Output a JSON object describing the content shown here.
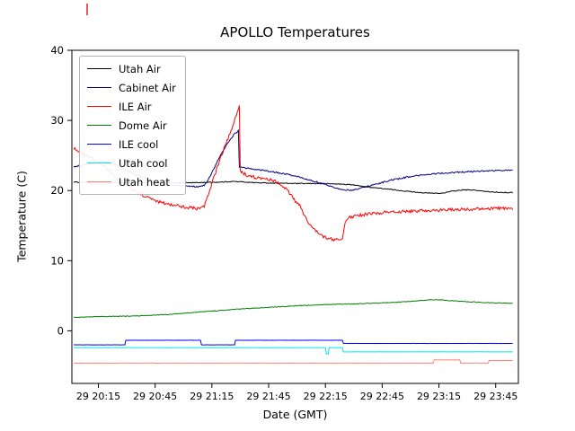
{
  "chart_data": {
    "type": "line",
    "title": "APOLLO Temperatures",
    "xlabel": "Date (GMT)",
    "ylabel": "Temperature (C)",
    "x_unit": "minutes after 29 20:00 GMT",
    "xlim": [
      1,
      237
    ],
    "ylim": [
      -7.5,
      40
    ],
    "grid": false,
    "legend_position": "upper left",
    "yticks": [
      0,
      10,
      20,
      30,
      40
    ],
    "xticks": [
      {
        "t": 15,
        "label": "29 20:15"
      },
      {
        "t": 45,
        "label": "29 20:45"
      },
      {
        "t": 75,
        "label": "29 21:15"
      },
      {
        "t": 105,
        "label": "29 21:45"
      },
      {
        "t": 135,
        "label": "29 22:15"
      },
      {
        "t": 165,
        "label": "29 22:45"
      },
      {
        "t": 195,
        "label": "29 23:15"
      },
      {
        "t": 225,
        "label": "29 23:45"
      }
    ],
    "series": [
      {
        "name": "Utah Air",
        "color": "#000000",
        "noise": 0.06,
        "points": [
          [
            2,
            21.2
          ],
          [
            30,
            21.15
          ],
          [
            60,
            21.1
          ],
          [
            80,
            21.2
          ],
          [
            86,
            21.3
          ],
          [
            90,
            21.25
          ],
          [
            100,
            21.1
          ],
          [
            110,
            21.05
          ],
          [
            120,
            21.0
          ],
          [
            130,
            21.0
          ],
          [
            140,
            20.95
          ],
          [
            148,
            20.85
          ],
          [
            158,
            20.5
          ],
          [
            168,
            20.2
          ],
          [
            178,
            19.9
          ],
          [
            188,
            19.65
          ],
          [
            196,
            19.6
          ],
          [
            202,
            19.9
          ],
          [
            208,
            20.1
          ],
          [
            214,
            20.05
          ],
          [
            220,
            19.85
          ],
          [
            227,
            19.75
          ],
          [
            234,
            19.7
          ]
        ]
      },
      {
        "name": "Cabinet Air",
        "color": "#000080",
        "noise": 0.1,
        "points": [
          [
            2,
            23.4
          ],
          [
            8,
            23.7
          ],
          [
            14,
            24.0
          ],
          [
            18,
            24.15
          ],
          [
            22,
            23.9
          ],
          [
            28,
            23.2
          ],
          [
            34,
            22.4
          ],
          [
            40,
            21.7
          ],
          [
            46,
            21.2
          ],
          [
            52,
            20.9
          ],
          [
            58,
            20.7
          ],
          [
            64,
            20.6
          ],
          [
            69,
            20.55
          ],
          [
            71,
            20.7
          ],
          [
            74,
            22.0
          ],
          [
            78,
            24.2
          ],
          [
            82,
            26.2
          ],
          [
            85,
            27.4
          ],
          [
            87,
            28.1
          ],
          [
            89,
            28.5
          ],
          [
            89.5,
            23.4
          ],
          [
            93,
            23.2
          ],
          [
            99,
            23.0
          ],
          [
            106,
            22.7
          ],
          [
            113,
            22.4
          ],
          [
            120,
            22.0
          ],
          [
            127,
            21.5
          ],
          [
            133,
            21.0
          ],
          [
            139,
            20.5
          ],
          [
            144,
            20.15
          ],
          [
            147,
            20.05
          ],
          [
            150,
            20.1
          ],
          [
            156,
            20.5
          ],
          [
            163,
            21.0
          ],
          [
            170,
            21.5
          ],
          [
            178,
            21.9
          ],
          [
            186,
            22.2
          ],
          [
            195,
            22.45
          ],
          [
            205,
            22.6
          ],
          [
            215,
            22.75
          ],
          [
            225,
            22.85
          ],
          [
            234,
            22.9
          ]
        ]
      },
      {
        "name": "ILE Air",
        "color": "#ff0000",
        "noise": 0.22,
        "points": [
          [
            2,
            26.0
          ],
          [
            7,
            25.3
          ],
          [
            12,
            24.5
          ],
          [
            17,
            23.6
          ],
          [
            22,
            22.5
          ],
          [
            27,
            21.3
          ],
          [
            32,
            20.3
          ],
          [
            37,
            19.5
          ],
          [
            42,
            18.9
          ],
          [
            47,
            18.4
          ],
          [
            52,
            18.1
          ],
          [
            57,
            17.85
          ],
          [
            62,
            17.6
          ],
          [
            66,
            17.45
          ],
          [
            69,
            17.4
          ],
          [
            71,
            17.8
          ],
          [
            73,
            19.3
          ],
          [
            76,
            21.8
          ],
          [
            79,
            24.2
          ],
          [
            82,
            26.4
          ],
          [
            85,
            28.4
          ],
          [
            87,
            29.9
          ],
          [
            88.5,
            31.2
          ],
          [
            89.5,
            32.0
          ],
          [
            90,
            22.8
          ],
          [
            94,
            22.1
          ],
          [
            99,
            21.8
          ],
          [
            104,
            21.6
          ],
          [
            108,
            21.4
          ],
          [
            111,
            21.0
          ],
          [
            114,
            20.3
          ],
          [
            117,
            19.3
          ],
          [
            119,
            18.5
          ],
          [
            121,
            18.1
          ],
          [
            122.5,
            17.3
          ],
          [
            124,
            16.3
          ],
          [
            127,
            15.1
          ],
          [
            130,
            14.2
          ],
          [
            133,
            13.6
          ],
          [
            136,
            13.2
          ],
          [
            139,
            13.0
          ],
          [
            142,
            12.95
          ],
          [
            144,
            13.1
          ],
          [
            145.5,
            15.6
          ],
          [
            147,
            16.1
          ],
          [
            150,
            16.35
          ],
          [
            155,
            16.55
          ],
          [
            161,
            16.75
          ],
          [
            168,
            16.9
          ],
          [
            176,
            17.0
          ],
          [
            185,
            17.1
          ],
          [
            195,
            17.2
          ],
          [
            205,
            17.3
          ],
          [
            215,
            17.35
          ],
          [
            225,
            17.45
          ],
          [
            230,
            17.5
          ],
          [
            234,
            17.4
          ]
        ]
      },
      {
        "name": "Dome Air",
        "color": "#008000",
        "noise": 0.05,
        "points": [
          [
            2,
            1.9
          ],
          [
            12,
            2.0
          ],
          [
            22,
            2.05
          ],
          [
            32,
            2.1
          ],
          [
            42,
            2.2
          ],
          [
            52,
            2.35
          ],
          [
            62,
            2.55
          ],
          [
            72,
            2.75
          ],
          [
            82,
            2.95
          ],
          [
            92,
            3.15
          ],
          [
            102,
            3.3
          ],
          [
            112,
            3.45
          ],
          [
            122,
            3.6
          ],
          [
            132,
            3.7
          ],
          [
            142,
            3.8
          ],
          [
            152,
            3.85
          ],
          [
            162,
            3.95
          ],
          [
            172,
            4.05
          ],
          [
            182,
            4.25
          ],
          [
            189,
            4.4
          ],
          [
            194,
            4.45
          ],
          [
            199,
            4.35
          ],
          [
            206,
            4.2
          ],
          [
            214,
            4.1
          ],
          [
            222,
            4.0
          ],
          [
            228,
            3.95
          ],
          [
            234,
            3.9
          ]
        ]
      },
      {
        "name": "ILE cool",
        "color": "#0000ff",
        "noise": 0.012,
        "points": [
          [
            2,
            -2.0
          ],
          [
            29,
            -2.0
          ],
          [
            29.5,
            -1.35
          ],
          [
            69,
            -1.35
          ],
          [
            69.5,
            -2.0
          ],
          [
            87,
            -2.0
          ],
          [
            87.5,
            -1.35
          ],
          [
            144,
            -1.35
          ],
          [
            144.5,
            -1.8
          ],
          [
            234,
            -1.8
          ]
        ]
      },
      {
        "name": "Utah cool",
        "color": "#00e5ee",
        "noise": 0.012,
        "points": [
          [
            2,
            -2.4
          ],
          [
            135,
            -2.4
          ],
          [
            135.5,
            -3.3
          ],
          [
            136.5,
            -3.3
          ],
          [
            137,
            -2.4
          ],
          [
            144,
            -2.4
          ],
          [
            144.5,
            -3.0
          ],
          [
            234,
            -3.0
          ]
        ]
      },
      {
        "name": "Utah heat",
        "color": "#fa8072",
        "noise": 0.012,
        "points": [
          [
            2,
            -4.6
          ],
          [
            192,
            -4.6
          ],
          [
            192.5,
            -4.15
          ],
          [
            206,
            -4.15
          ],
          [
            206.5,
            -4.6
          ],
          [
            221,
            -4.6
          ],
          [
            221.5,
            -4.25
          ],
          [
            234,
            -4.25
          ]
        ]
      }
    ],
    "artifacts": [
      {
        "name": "stray-red-mark",
        "x": 97,
        "y1": 4,
        "y2": 17,
        "color": "#dd2222"
      }
    ]
  }
}
